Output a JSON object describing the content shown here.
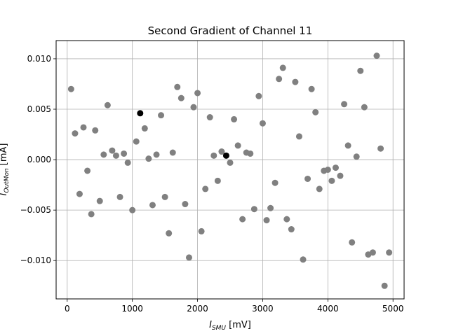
{
  "chart_data": {
    "type": "scatter",
    "title": "Second Gradient of Channel 11",
    "xlabel": {
      "var": "I",
      "sub": "SMU",
      "unit": " [mV]"
    },
    "ylabel": {
      "var": "I",
      "sub": "OutMon",
      "unit": " [mA]"
    },
    "xlim": [
      -170,
      5170
    ],
    "ylim": [
      -0.0138,
      0.0118
    ],
    "xticks": [
      {
        "value": 0,
        "label": "0"
      },
      {
        "value": 1000,
        "label": "1000"
      },
      {
        "value": 2000,
        "label": "2000"
      },
      {
        "value": 3000,
        "label": "3000"
      },
      {
        "value": 4000,
        "label": "4000"
      },
      {
        "value": 5000,
        "label": "5000"
      }
    ],
    "yticks": [
      {
        "value": -0.01,
        "label": "−0.010"
      },
      {
        "value": -0.005,
        "label": "−0.005"
      },
      {
        "value": 0.0,
        "label": "0.000"
      },
      {
        "value": 0.005,
        "label": "0.005"
      },
      {
        "value": 0.01,
        "label": "0.010"
      }
    ],
    "grid": true,
    "series": [
      {
        "color": "#808080",
        "points": [
          [
            60,
            0.007
          ],
          [
            120,
            0.0026
          ],
          [
            190,
            -0.0034
          ],
          [
            250,
            0.0032
          ],
          [
            310,
            -0.0011
          ],
          [
            370,
            -0.0054
          ],
          [
            430,
            0.0029
          ],
          [
            500,
            -0.0041
          ],
          [
            560,
            0.0005
          ],
          [
            620,
            0.0054
          ],
          [
            690,
            0.0009
          ],
          [
            750,
            0.0004
          ],
          [
            810,
            -0.0037
          ],
          [
            870,
            0.0006
          ],
          [
            930,
            -0.0003
          ],
          [
            1000,
            -0.005
          ],
          [
            1060,
            0.0018
          ],
          [
            1190,
            0.0031
          ],
          [
            1250,
            0.0001
          ],
          [
            1310,
            -0.0045
          ],
          [
            1370,
            0.0005
          ],
          [
            1440,
            0.0044
          ],
          [
            1500,
            -0.0037
          ],
          [
            1560,
            -0.0073
          ],
          [
            1620,
            0.0007
          ],
          [
            1690,
            0.0072
          ],
          [
            1750,
            0.0061
          ],
          [
            1810,
            -0.0044
          ],
          [
            1870,
            -0.0097
          ],
          [
            1940,
            0.0052
          ],
          [
            2000,
            0.0066
          ],
          [
            2060,
            -0.0071
          ],
          [
            2120,
            -0.0029
          ],
          [
            2190,
            0.0042
          ],
          [
            2250,
            0.0004
          ],
          [
            2310,
            -0.0021
          ],
          [
            2370,
            0.0008
          ],
          [
            2500,
            -0.0003
          ],
          [
            2560,
            0.004
          ],
          [
            2620,
            0.0014
          ],
          [
            2690,
            -0.0059
          ],
          [
            2750,
            0.0007
          ],
          [
            2810,
            0.0006
          ],
          [
            2870,
            -0.0049
          ],
          [
            2940,
            0.0063
          ],
          [
            3000,
            0.0036
          ],
          [
            3060,
            -0.006
          ],
          [
            3120,
            -0.0048
          ],
          [
            3190,
            -0.0023
          ],
          [
            3250,
            0.008
          ],
          [
            3310,
            0.0091
          ],
          [
            3370,
            -0.0059
          ],
          [
            3440,
            -0.0069
          ],
          [
            3500,
            0.0077
          ],
          [
            3560,
            0.0023
          ],
          [
            3620,
            -0.0099
          ],
          [
            3690,
            -0.0019
          ],
          [
            3750,
            0.007
          ],
          [
            3810,
            0.0047
          ],
          [
            3870,
            -0.0029
          ],
          [
            3940,
            -0.0011
          ],
          [
            4000,
            -0.001
          ],
          [
            4060,
            -0.0021
          ],
          [
            4120,
            -0.0008
          ],
          [
            4190,
            -0.0016
          ],
          [
            4250,
            0.0055
          ],
          [
            4310,
            0.0014
          ],
          [
            4370,
            -0.0082
          ],
          [
            4440,
            0.0003
          ],
          [
            4500,
            0.0088
          ],
          [
            4560,
            0.0052
          ],
          [
            4620,
            -0.0094
          ],
          [
            4690,
            -0.0092
          ],
          [
            4750,
            0.0103
          ],
          [
            4810,
            0.0011
          ],
          [
            4870,
            -0.0125
          ],
          [
            4940,
            -0.0092
          ]
        ]
      },
      {
        "color": "#000000",
        "points": [
          [
            1120,
            0.0046
          ],
          [
            2440,
            0.0004
          ]
        ]
      }
    ]
  }
}
